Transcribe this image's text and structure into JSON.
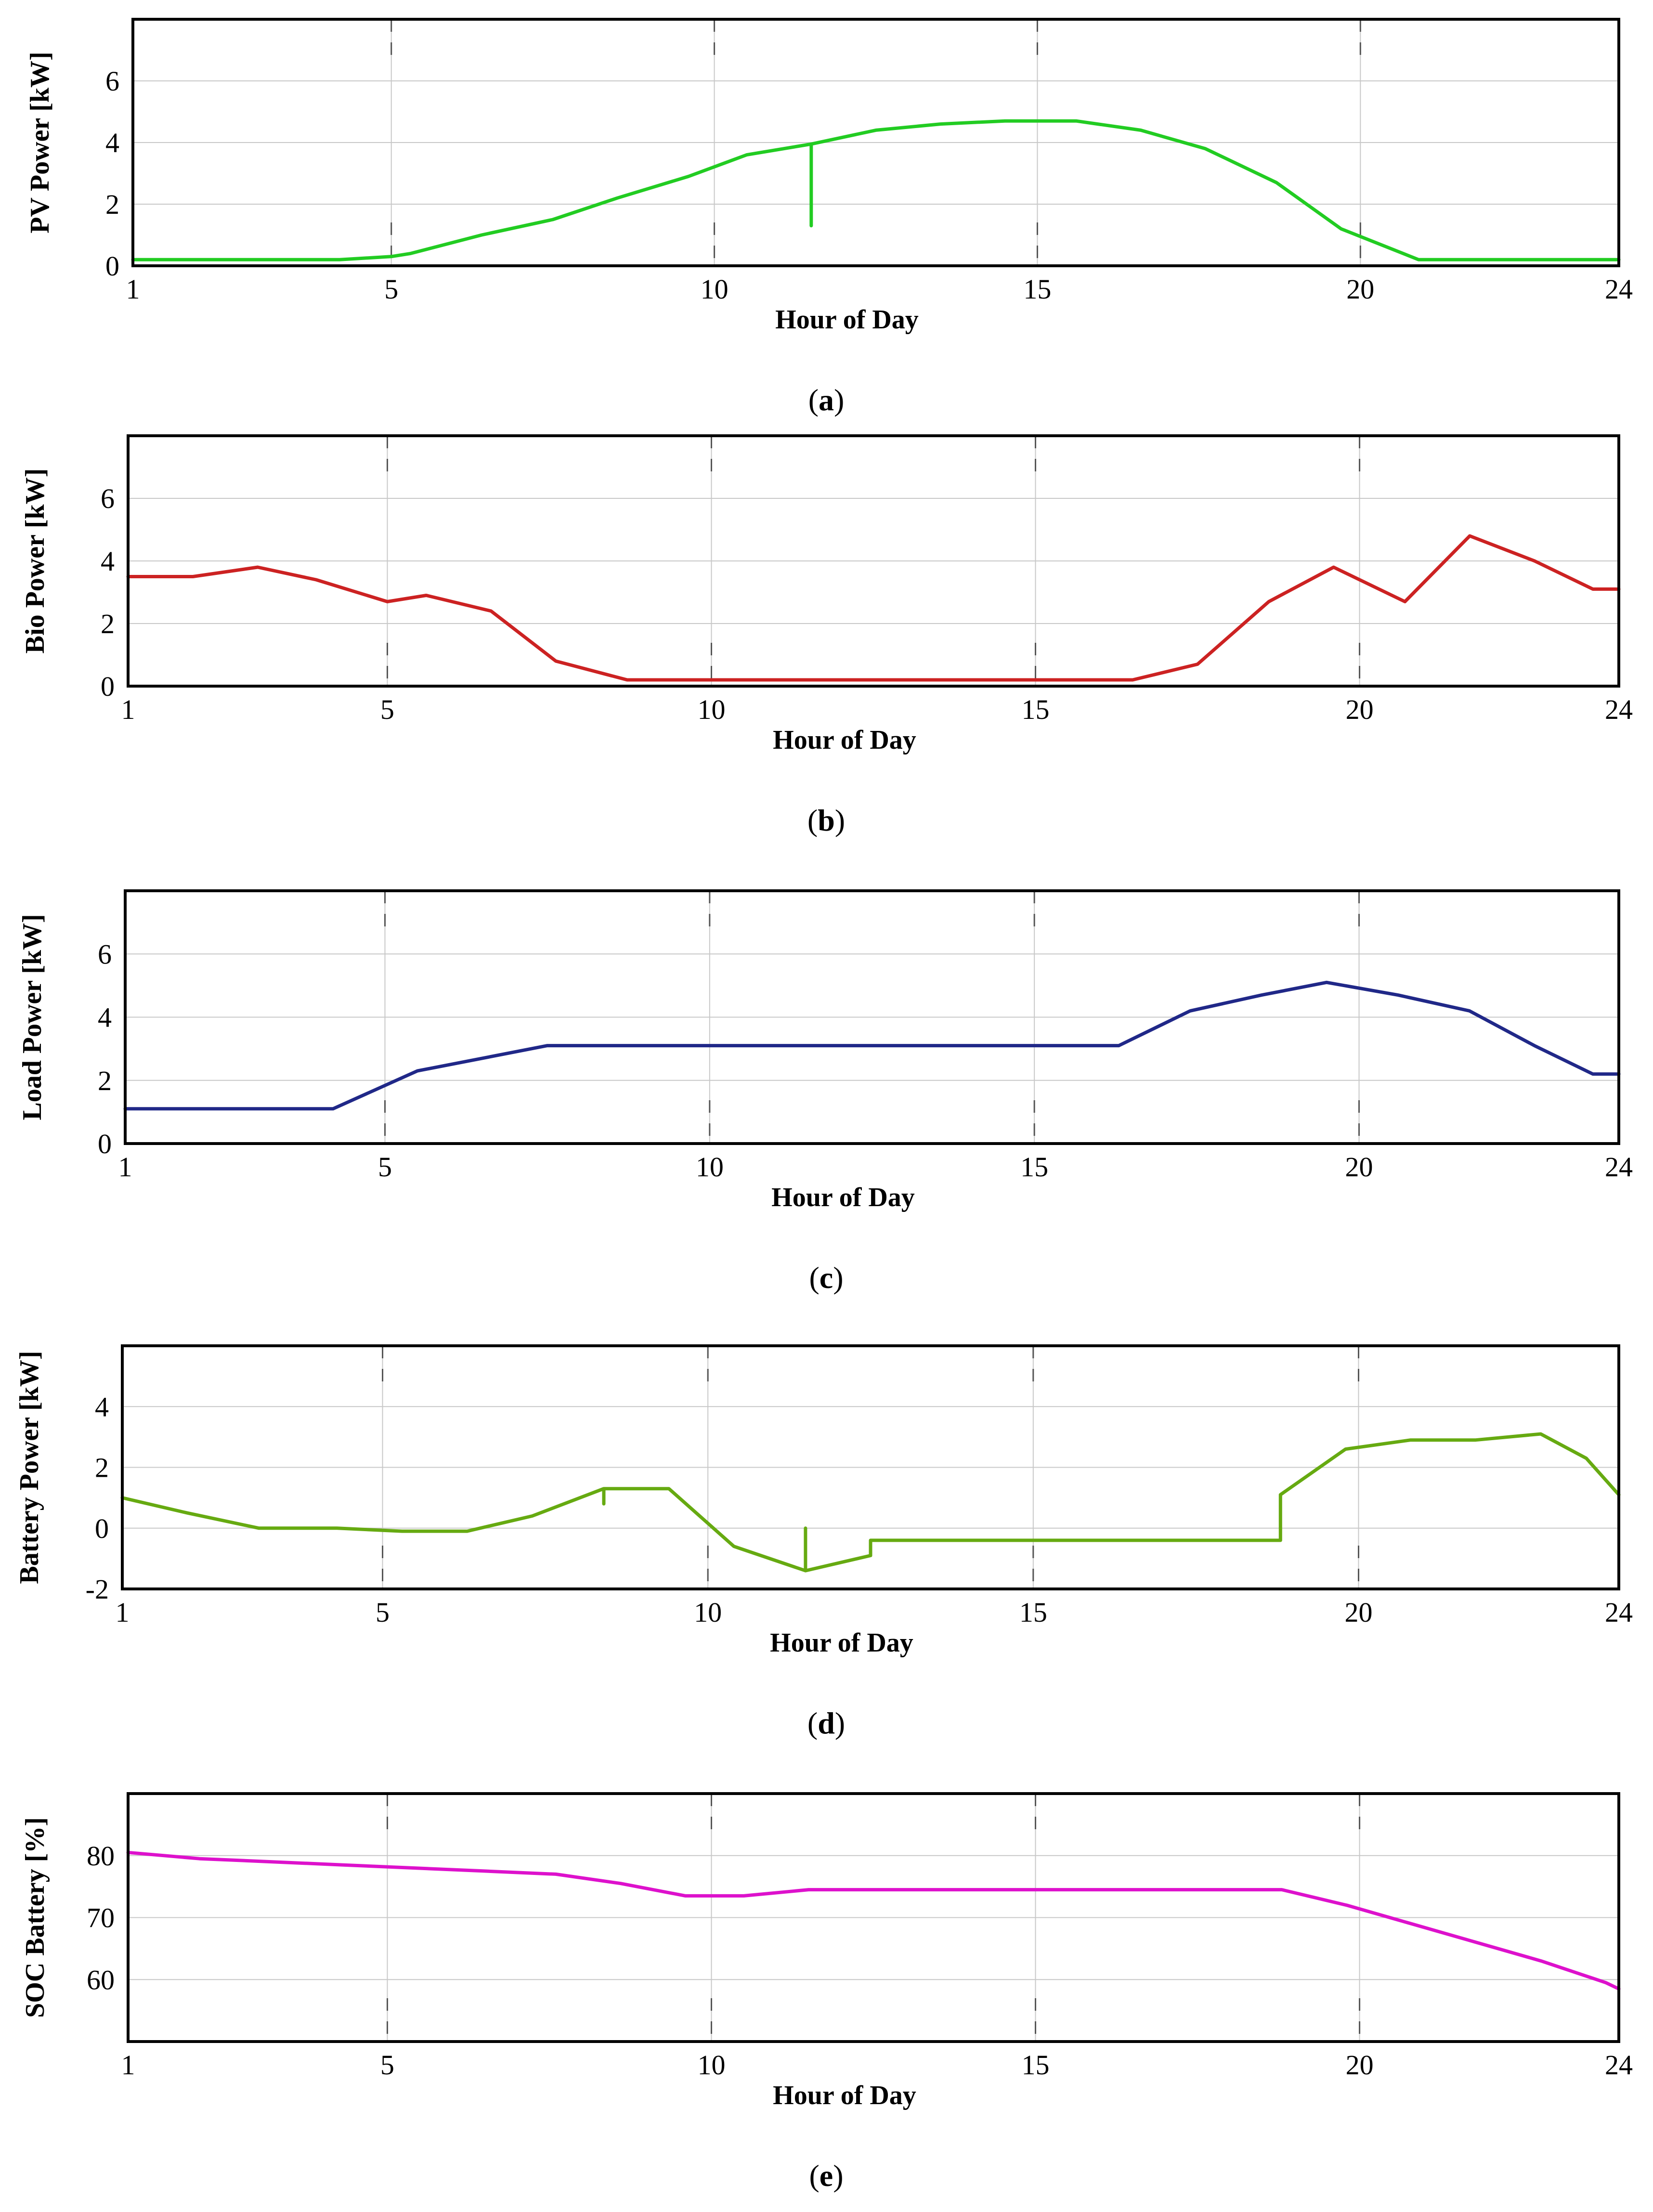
{
  "chart_data": [
    {
      "type": "line",
      "ylabel": "PV Power [kW]",
      "xlabel": "Hour of Day",
      "caption_letter": "a",
      "xlim": [
        1,
        24
      ],
      "ylim": [
        0,
        8
      ],
      "xticks": [
        1,
        5,
        10,
        15,
        20,
        24
      ],
      "yticks": [
        0,
        2,
        4,
        6
      ],
      "grid": true,
      "series": [
        {
          "name": "PV Power",
          "color": "#22cc22",
          "x": [
            1,
            4.2,
            5,
            5.3,
            6.4,
            7.5,
            8.5,
            9.6,
            10.5,
            11.5,
            11.5,
            11.5,
            12.5,
            13.5,
            14.5,
            15.6,
            16.6,
            17.6,
            18.7,
            19.7,
            20.9,
            24
          ],
          "y": [
            0.2,
            0.2,
            0.3,
            0.4,
            1.0,
            1.5,
            2.2,
            2.9,
            3.6,
            3.95,
            1.3,
            3.95,
            4.4,
            4.6,
            4.7,
            4.7,
            4.4,
            3.8,
            2.7,
            1.2,
            0.2,
            0.2
          ]
        }
      ]
    },
    {
      "type": "line",
      "ylabel": "Bio Power  [kW]",
      "xlabel": "Hour of Day",
      "caption_letter": "b",
      "xlim": [
        1,
        24
      ],
      "ylim": [
        0,
        8
      ],
      "xticks": [
        1,
        5,
        10,
        15,
        20,
        24
      ],
      "yticks": [
        0,
        2,
        4,
        6
      ],
      "grid": true,
      "series": [
        {
          "name": "Bio Power",
          "color": "#cc2222",
          "x": [
            1,
            2,
            3,
            3.9,
            5,
            5.6,
            6.6,
            7.6,
            8.7,
            9.6,
            10.5,
            11.6,
            12.5,
            13.5,
            14.5,
            15.5,
            16.5,
            17.5,
            18.6,
            19.6,
            20.7,
            21.7,
            22.7,
            23.6,
            24
          ],
          "y": [
            3.5,
            3.5,
            3.8,
            3.4,
            2.7,
            2.9,
            2.4,
            0.8,
            0.2,
            0.2,
            0.2,
            0.2,
            0.2,
            0.2,
            0.2,
            0.2,
            0.2,
            0.7,
            2.7,
            3.8,
            2.7,
            4.8,
            4.0,
            3.1,
            3.1
          ]
        }
      ]
    },
    {
      "type": "line",
      "ylabel": "Load Power  [kW]",
      "xlabel": "Hour of Day",
      "caption_letter": "c",
      "xlim": [
        1,
        24
      ],
      "ylim": [
        0,
        8
      ],
      "xticks": [
        1,
        5,
        10,
        15,
        20,
        24
      ],
      "yticks": [
        0,
        2,
        4,
        6
      ],
      "grid": true,
      "series": [
        {
          "name": "Load Power",
          "color": "#202888",
          "x": [
            1,
            2.2,
            3.2,
            4.2,
            5.5,
            7.5,
            8.5,
            10,
            11.5,
            12.5,
            13.5,
            14.5,
            15.5,
            16.3,
            17.4,
            18.5,
            19.5,
            20.6,
            21.7,
            22.7,
            23.6,
            24
          ],
          "y": [
            1.1,
            1.1,
            1.1,
            1.1,
            2.3,
            3.1,
            3.1,
            3.1,
            3.1,
            3.1,
            3.1,
            3.1,
            3.1,
            3.1,
            4.2,
            4.7,
            5.1,
            4.7,
            4.2,
            3.1,
            2.2,
            2.2
          ]
        }
      ]
    },
    {
      "type": "line",
      "ylabel": "Battery Power  [kW]",
      "xlabel": "Hour of Day",
      "caption_letter": "d",
      "xlim": [
        1,
        24
      ],
      "ylim": [
        -2,
        6
      ],
      "xticks": [
        1,
        5,
        10,
        15,
        20,
        24
      ],
      "yticks": [
        -2,
        0,
        2,
        4
      ],
      "grid": true,
      "series": [
        {
          "name": "Battery Power",
          "color": "#66aa11",
          "x": [
            1,
            2,
            3.1,
            4.3,
            5.3,
            6.3,
            7.3,
            8.4,
            8.4,
            8.4,
            9.4,
            10.4,
            11.5,
            11.5,
            11.5,
            12.5,
            12.5,
            13.5,
            14.5,
            15.5,
            16.5,
            17.5,
            18.8,
            18.8,
            19.8,
            20.8,
            21.8,
            22.8,
            23.5,
            24
          ],
          "y": [
            1.0,
            0.5,
            0.0,
            0.0,
            -0.1,
            -0.1,
            0.4,
            1.3,
            0.8,
            1.3,
            1.3,
            -0.6,
            -1.4,
            0.0,
            -1.4,
            -0.9,
            -0.4,
            -0.4,
            -0.4,
            -0.4,
            -0.4,
            -0.4,
            -0.4,
            1.1,
            2.6,
            2.9,
            2.9,
            3.1,
            2.3,
            1.1
          ]
        }
      ]
    },
    {
      "type": "line",
      "ylabel": "SOC Battery [%]",
      "xlabel": "Hour of Day",
      "caption_letter": "e",
      "xlim": [
        1,
        24
      ],
      "ylim": [
        50,
        90
      ],
      "xticks": [
        1,
        5,
        10,
        15,
        20,
        24
      ],
      "yticks": [
        60,
        70,
        80
      ],
      "grid": true,
      "series": [
        {
          "name": "SOC Battery",
          "color": "#dd11cc",
          "x": [
            1,
            2.1,
            3.2,
            4.3,
            5.4,
            6.5,
            7.6,
            8.6,
            9.6,
            10.5,
            11.5,
            12.5,
            13.6,
            14.6,
            15.6,
            16.6,
            17.6,
            18.8,
            19.8,
            20.8,
            21.8,
            22.8,
            23.8,
            24
          ],
          "y": [
            80.5,
            79.5,
            79,
            78.5,
            78,
            77.5,
            77,
            75.5,
            73.5,
            73.5,
            74.5,
            74.5,
            74.5,
            74.5,
            74.5,
            74.5,
            74.5,
            74.5,
            72,
            69,
            66,
            63,
            59.5,
            58.5
          ]
        }
      ]
    }
  ]
}
